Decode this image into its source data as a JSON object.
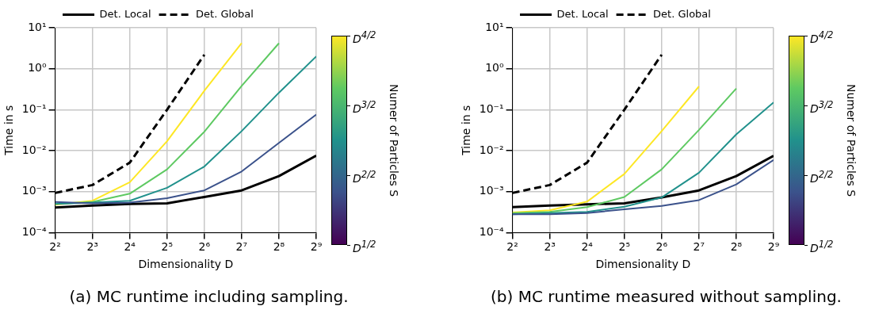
{
  "chart_data": [
    {
      "type": "line",
      "xlabel": "Dimensionality D",
      "ylabel": "Time in s",
      "clabel": "Numer of Particles S",
      "annotations": [
        "(a) MC runtime including sampling."
      ],
      "x": [
        4,
        8,
        16,
        32,
        64,
        128,
        256,
        512
      ],
      "xlim": [
        4,
        512
      ],
      "xticks": [
        {
          "value": 4,
          "label": "2²"
        },
        {
          "value": 8,
          "label": "2³"
        },
        {
          "value": 16,
          "label": "2⁴"
        },
        {
          "value": 32,
          "label": "2⁵"
        },
        {
          "value": 64,
          "label": "2⁶"
        },
        {
          "value": 128,
          "label": "2⁷"
        },
        {
          "value": 256,
          "label": "2⁸"
        },
        {
          "value": 512,
          "label": "2⁹"
        }
      ],
      "ylim": [
        0.0001,
        10
      ],
      "yticks": [
        {
          "value": 0.0001,
          "label": "10⁻⁴"
        },
        {
          "value": 0.001,
          "label": "10⁻³"
        },
        {
          "value": 0.01,
          "label": "10⁻²"
        },
        {
          "value": 0.1,
          "label": "10⁻¹"
        },
        {
          "value": 1,
          "label": "10⁰"
        },
        {
          "value": 10,
          "label": "10¹"
        }
      ],
      "log": "xy",
      "grid": true,
      "legend": "top",
      "clim": [
        1,
        4
      ],
      "cticks": [
        {
          "value": 1,
          "label": "D$^{1/2}$"
        },
        {
          "value": 2,
          "label": "D$^{2/2}$"
        },
        {
          "value": 3,
          "label": "D$^{3/2}$"
        },
        {
          "value": 4,
          "label": "D$^{4/2}$"
        }
      ],
      "series": [
        {
          "color": "#3b528b",
          "line_style": "solid",
          "values": [
            0.00056,
            0.00052,
            0.00054,
            0.00069,
            0.00107,
            0.0031,
            0.0155,
            0.076
          ]
        },
        {
          "color": "#21918c",
          "line_style": "solid",
          "values": [
            0.0005,
            0.00054,
            0.0006,
            0.00124,
            0.0041,
            0.03,
            0.26,
            2.0
          ]
        },
        {
          "color": "#5ec962",
          "line_style": "solid",
          "values": [
            0.0005,
            0.00056,
            0.00089,
            0.0035,
            0.029,
            0.38,
            4.2,
            null
          ]
        },
        {
          "color": "#fde725",
          "line_style": "solid",
          "values": [
            0.00048,
            0.0006,
            0.0017,
            0.017,
            0.29,
            4.2,
            null,
            null
          ]
        },
        {
          "name": "Det. Local",
          "color": "#000000",
          "line_style": "solid",
          "values": [
            0.00041,
            0.00046,
            0.0005,
            0.00052,
            0.00074,
            0.00107,
            0.0024,
            0.0076
          ]
        },
        {
          "name": "Det. Global",
          "color": "#000000",
          "line_style": "dashed",
          "values": [
            0.00093,
            0.00145,
            0.0051,
            0.1,
            2.2,
            null,
            null,
            null
          ]
        }
      ]
    },
    {
      "type": "line",
      "xlabel": "Dimensionality D",
      "ylabel": "Time in s",
      "clabel": "Numer of Particles S",
      "annotations": [
        "(b) MC runtime measured without sampling."
      ],
      "x": [
        4,
        8,
        16,
        32,
        64,
        128,
        256,
        512
      ],
      "xlim": [
        4,
        512
      ],
      "xticks": [
        {
          "value": 4,
          "label": "2²"
        },
        {
          "value": 8,
          "label": "2³"
        },
        {
          "value": 16,
          "label": "2⁴"
        },
        {
          "value": 32,
          "label": "2⁵"
        },
        {
          "value": 64,
          "label": "2⁶"
        },
        {
          "value": 128,
          "label": "2⁷"
        },
        {
          "value": 256,
          "label": "2⁸"
        },
        {
          "value": 512,
          "label": "2⁹"
        }
      ],
      "ylim": [
        0.0001,
        10
      ],
      "yticks": [
        {
          "value": 0.0001,
          "label": "10⁻⁴"
        },
        {
          "value": 0.001,
          "label": "10⁻³"
        },
        {
          "value": 0.01,
          "label": "10⁻²"
        },
        {
          "value": 0.1,
          "label": "10⁻¹"
        },
        {
          "value": 1,
          "label": "10⁰"
        },
        {
          "value": 10,
          "label": "10¹"
        }
      ],
      "log": "xy",
      "grid": true,
      "legend": "top",
      "clim": [
        1,
        4
      ],
      "cticks": [
        {
          "value": 1,
          "label": "D$^{1/2}$"
        },
        {
          "value": 2,
          "label": "D$^{2/2}$"
        },
        {
          "value": 3,
          "label": "D$^{3/2}$"
        },
        {
          "value": 4,
          "label": "D$^{4/2}$"
        }
      ],
      "series": [
        {
          "color": "#3b528b",
          "line_style": "solid",
          "values": [
            0.00028,
            0.00028,
            0.0003,
            0.00037,
            0.00045,
            0.00062,
            0.0015,
            0.0059
          ]
        },
        {
          "color": "#21918c",
          "line_style": "solid",
          "values": [
            0.00028,
            0.0003,
            0.00032,
            0.00043,
            0.00072,
            0.0029,
            0.025,
            0.15
          ]
        },
        {
          "color": "#5ec962",
          "line_style": "solid",
          "values": [
            0.0003,
            0.00032,
            0.00042,
            0.00074,
            0.0035,
            0.032,
            0.33,
            null
          ]
        },
        {
          "color": "#fde725",
          "line_style": "solid",
          "values": [
            0.00031,
            0.00035,
            0.00057,
            0.0027,
            0.03,
            0.37,
            null,
            null
          ]
        },
        {
          "name": "Det. Local",
          "color": "#000000",
          "line_style": "solid",
          "values": [
            0.00042,
            0.00046,
            0.00049,
            0.00052,
            0.00072,
            0.00107,
            0.0024,
            0.0075
          ]
        },
        {
          "name": "Det. Global",
          "color": "#000000",
          "line_style": "dashed",
          "values": [
            0.00093,
            0.00145,
            0.0051,
            0.1,
            2.2,
            null,
            null,
            null
          ]
        }
      ]
    }
  ]
}
